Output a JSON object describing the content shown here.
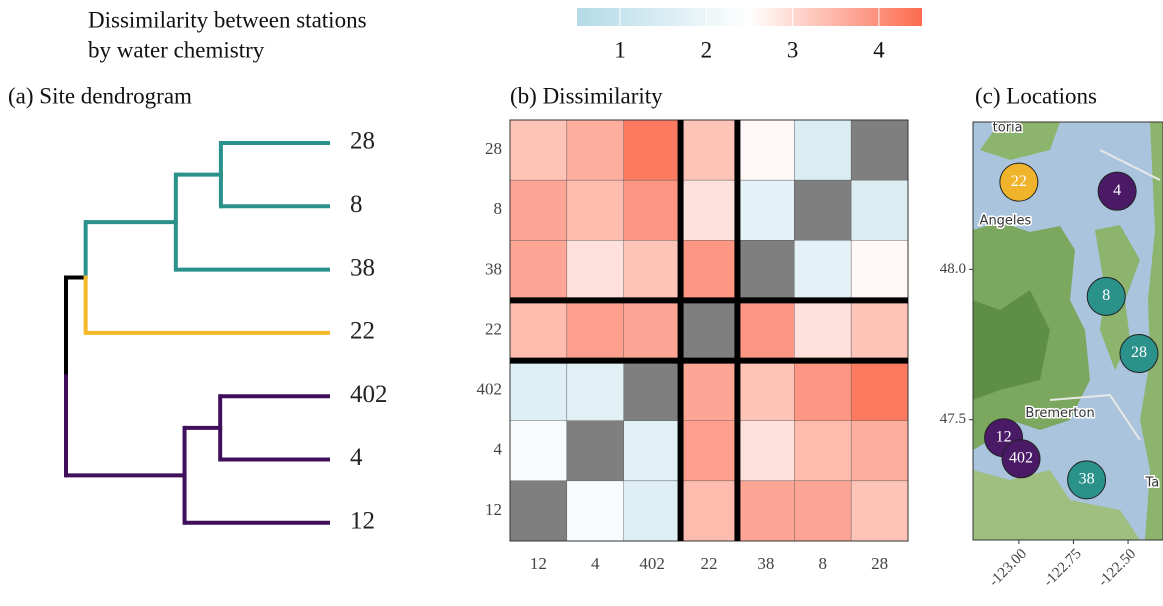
{
  "chart_data": [
    {
      "type": "dendrogram",
      "title": "(a) Site dendrogram",
      "tree": {
        "height": 3.63,
        "children": [
          {
            "height": 3.36,
            "children": [
              {
                "height": 2.12,
                "color": "#2a918b",
                "children": [
                  {
                    "height": 1.5,
                    "color": "#2a918b",
                    "children": [
                      {
                        "label": "28",
                        "color": "#2a918b"
                      },
                      {
                        "label": "8",
                        "color": "#2a918b"
                      }
                    ]
                  },
                  {
                    "label": "38",
                    "color": "#2a918b"
                  }
                ]
              },
              {
                "label": "22",
                "color": "#f5b82a"
              }
            ]
          },
          {
            "height": 2.0,
            "color": "#3f0f5c",
            "children": [
              {
                "height": 1.51,
                "color": "#3f0f5c",
                "children": [
                  {
                    "label": "402",
                    "color": "#3f0f5c"
                  },
                  {
                    "label": "4",
                    "color": "#3f0f5c"
                  }
                ]
              },
              {
                "label": "12",
                "color": "#3f0f5c"
              }
            ]
          }
        ]
      }
    },
    {
      "type": "heatmap",
      "title": "(b) Dissimilarity",
      "rows": [
        "28",
        "8",
        "38",
        "22",
        "402",
        "4",
        "12"
      ],
      "columns": [
        "12",
        "4",
        "402",
        "22",
        "38",
        "8",
        "28"
      ],
      "values": [
        [
          3.3,
          3.6,
          4.3,
          3.3,
          2.6,
          1.5,
          null
        ],
        [
          3.7,
          3.4,
          3.9,
          2.9,
          1.8,
          null,
          1.5
        ],
        [
          3.7,
          2.9,
          3.3,
          3.9,
          null,
          1.8,
          2.6
        ],
        [
          3.4,
          3.8,
          3.7,
          null,
          3.9,
          2.9,
          3.3
        ],
        [
          1.6,
          1.7,
          null,
          3.7,
          3.3,
          3.9,
          4.3
        ],
        [
          2.3,
          null,
          1.7,
          3.8,
          2.9,
          3.4,
          3.6
        ],
        [
          null,
          2.3,
          1.6,
          3.4,
          3.7,
          3.7,
          3.3
        ]
      ],
      "na_color": "#7f7f7f",
      "colorbar": {
        "title": [
          "Dissimilarity between stations",
          "by water chemistry"
        ],
        "lim": [
          0.5,
          4.5
        ],
        "ticks": [
          1,
          2,
          3,
          4
        ],
        "low": "#b3dae7",
        "mid": "#ffffff",
        "high": "#fc6b4e",
        "midpoint": 2.5
      }
    },
    {
      "type": "map",
      "title": "(c) Locations",
      "xlim": [
        -123.21,
        -122.34
      ],
      "ylim": [
        47.1,
        48.49
      ],
      "xticks": [
        {
          "value": -123,
          "label": "-123.00"
        },
        -122.75,
        {
          "value": -122.5,
          "label": "-122.50"
        }
      ],
      "yticks": [
        {
          "value": 48,
          "label": "48.0"
        },
        47.5
      ],
      "points": [
        {
          "label": "22",
          "x": -123.0,
          "y": 48.29,
          "color": "#f0b42c"
        },
        {
          "label": "4",
          "x": -122.55,
          "y": 48.26,
          "color": "#4a1a66"
        },
        {
          "label": "8",
          "x": -122.6,
          "y": 47.91,
          "color": "#2a918b"
        },
        {
          "label": "28",
          "x": -122.45,
          "y": 47.72,
          "color": "#2a918b"
        },
        {
          "label": "12",
          "x": -123.07,
          "y": 47.44,
          "color": "#4a1a66"
        },
        {
          "label": "402",
          "x": -122.99,
          "y": 47.37,
          "color": "#4a1a66"
        },
        {
          "label": "38",
          "x": -122.69,
          "y": 47.3,
          "color": "#2a918b"
        }
      ],
      "places": [
        {
          "label": "toria",
          "x": -123.12,
          "y": 48.47
        },
        {
          "label": "Angeles",
          "x": -123.18,
          "y": 48.16
        },
        {
          "label": "Bremerton",
          "x": -122.97,
          "y": 47.52
        },
        {
          "label": "Ta",
          "x": -122.42,
          "y": 47.29
        }
      ]
    }
  ]
}
